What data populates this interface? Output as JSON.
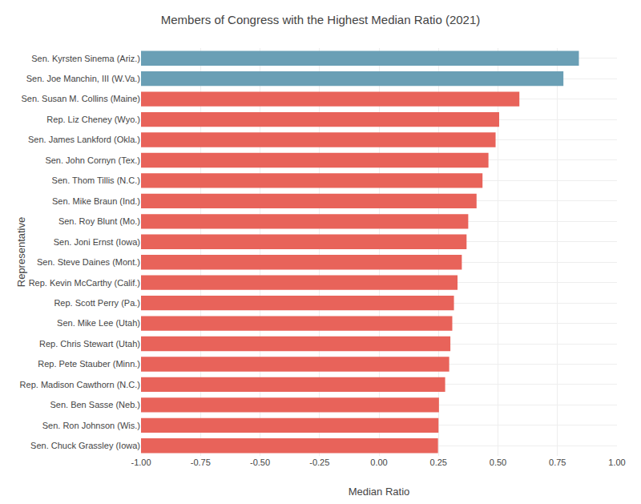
{
  "chart_data": {
    "type": "bar",
    "orientation": "horizontal",
    "title": "Members of Congress with the Highest Median Ratio (2021)",
    "xlabel": "Median Ratio",
    "ylabel": "Representative",
    "categories": [
      "Sen. Chuck Grassley (Iowa)",
      "Sen. Ron Johnson (Wis.)",
      "Sen. Ben Sasse (Neb.)",
      "Rep. Madison Cawthorn (N.C.)",
      "Rep. Pete Stauber (Minn.)",
      "Rep. Chris Stewart (Utah)",
      "Sen. Mike Lee (Utah)",
      "Rep. Scott Perry (Pa.)",
      "Rep. Kevin McCarthy (Calif.)",
      "Sen. Steve Daines (Mont.)",
      "Sen. Joni Ernst (Iowa)",
      "Sen. Roy Blunt (Mo.)",
      "Sen. Mike Braun (Ind.)",
      "Sen. Thom Tillis (N.C.)",
      "Sen. John Cornyn (Tex.)",
      "Sen. James Lankford (Okla.)",
      "Rep. Liz Cheney (Wyo.)",
      "Sen. Susan M. Collins (Maine)",
      "Sen. Joe Manchin, III (W.Va.)",
      "Sen. Kyrsten Sinema (Ariz.)"
    ],
    "values": [
      0.248,
      0.25,
      0.252,
      0.278,
      0.295,
      0.3,
      0.308,
      0.315,
      0.33,
      0.348,
      0.368,
      0.375,
      0.41,
      0.435,
      0.46,
      0.49,
      0.505,
      0.59,
      0.775,
      0.84
    ],
    "colors": [
      "#e8635a",
      "#e8635a",
      "#e8635a",
      "#e8635a",
      "#e8635a",
      "#e8635a",
      "#e8635a",
      "#e8635a",
      "#e8635a",
      "#e8635a",
      "#e8635a",
      "#e8635a",
      "#e8635a",
      "#e8635a",
      "#e8635a",
      "#e8635a",
      "#e8635a",
      "#e8635a",
      "#6a9fb5",
      "#6a9fb5"
    ],
    "xlim": [
      -1.0,
      1.0
    ],
    "xticks": [
      {
        "value": -1.0,
        "label": "-1.00"
      },
      {
        "value": -0.75,
        "label": "-0.75"
      },
      {
        "value": -0.5,
        "label": "-0.50"
      },
      {
        "value": -0.25,
        "label": "-0.25"
      },
      {
        "value": 0.0,
        "label": "0.00"
      },
      {
        "value": 0.25,
        "label": "0.25"
      },
      {
        "value": 0.5,
        "label": "0.50"
      },
      {
        "value": 0.75,
        "label": "0.75"
      },
      {
        "value": 1.0,
        "label": "1.00"
      }
    ],
    "grid": true
  }
}
